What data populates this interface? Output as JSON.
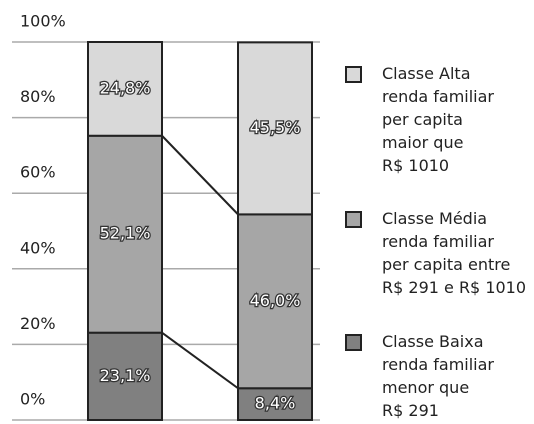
{
  "chart_data": {
    "type": "stacked_bar",
    "categories": [
      null,
      null
    ],
    "series": [
      {
        "name": "Classe Baixa\nrenda familiar\nmenor que\nR$ 291",
        "color": "#808080",
        "values": [
          23.1,
          8.4
        ],
        "value_labels": [
          "23,1%",
          "8,4%"
        ]
      },
      {
        "name": "Classe Média\nrenda familiar\nper capita entre\nR$ 291 e R$ 1010",
        "color": "#a6a6a6",
        "values": [
          52.1,
          46.0
        ],
        "value_labels": [
          "52,1%",
          "46,0%"
        ]
      },
      {
        "name": "Classe Alta\nrenda familiar\nper capita\nmaior que\nR$ 1010",
        "color": "#d9d9d9",
        "values": [
          24.8,
          45.5
        ],
        "value_labels": [
          "24,8%",
          "45,5%"
        ]
      }
    ],
    "ylim": [
      0,
      100
    ],
    "yticks": [
      {
        "value": 0,
        "label": "0%"
      },
      {
        "value": 20,
        "label": "20%"
      },
      {
        "value": 40,
        "label": "40%"
      },
      {
        "value": 60,
        "label": "60%"
      },
      {
        "value": 80,
        "label": "80%"
      },
      {
        "value": 100,
        "label": "100%"
      }
    ],
    "grid": true,
    "legend": "right"
  }
}
